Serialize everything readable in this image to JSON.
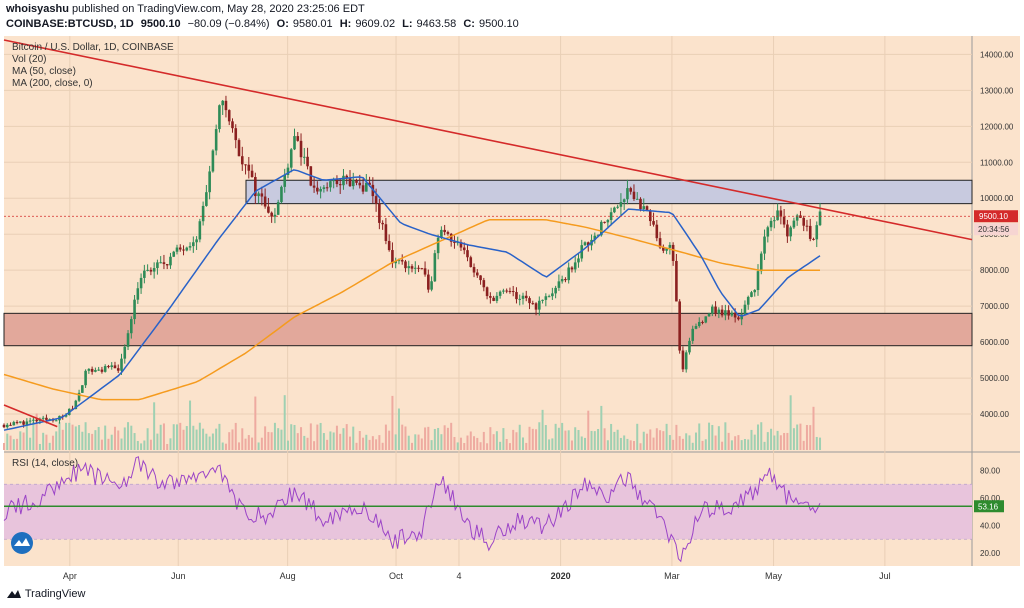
{
  "header": {
    "author": "whoisyashu",
    "published": "published on TradingView.com, May 28, 2020 23:25:06 EDT",
    "symbol": "COINBASE:BTCUSD, 1D",
    "last": "9500.10",
    "change": "−80.09 (−0.84%)",
    "open_label": "O:",
    "open": "9580.01",
    "high_label": "H:",
    "high": "9609.02",
    "low_label": "L:",
    "low": "9463.58",
    "close_label": "C:",
    "close": "9500.10"
  },
  "legend": {
    "title": "Bitcoin / U.S. Dollar, 1D, COINBASE",
    "vol": "Vol (20)",
    "ma50": "MA (50, close)",
    "ma200": "MA (200, close, 0)"
  },
  "price_tag": "9500.10",
  "countdown": "20:34:56",
  "rsi_label": "RSI (14, close)",
  "rsi_value": "53.16",
  "footer": {
    "brand": "TradingView"
  },
  "colors": {
    "background": "#fbe3cc",
    "up": "#2e8b57",
    "down": "#8b2020",
    "ma50": "#2962c8",
    "ma200": "#f59b1e",
    "trendline": "#d42a2a",
    "resistance_zone": "#c8cadf",
    "support_zone": "#e2a89b",
    "rsi": "#9b44c7",
    "rsi_band": "#e8c4dc",
    "rsi_mid": "#2e8b2e"
  },
  "chart_data": [
    {
      "type": "candlestick",
      "title": "Bitcoin / U.S. Dollar, 1D, COINBASE",
      "x_ticks": [
        "Apr",
        "Jun",
        "Aug",
        "Oct",
        "4",
        "2020",
        "Mar",
        "May",
        "Jul"
      ],
      "ylim": [
        3000,
        14400
      ],
      "y_ticks": [
        4000,
        5000,
        6000,
        7000,
        8000,
        9000,
        10000,
        11000,
        12000,
        13000,
        14000
      ],
      "y_tick_labels": [
        "4000.00",
        "5000.00",
        "6000.00",
        "7000.00",
        "8000.00",
        "9000.00",
        "10000.00",
        "11000.00",
        "12000.00",
        "13000.00",
        "14000.00"
      ],
      "zones": [
        {
          "name": "resistance",
          "low": 9850,
          "high": 10500
        },
        {
          "name": "support",
          "low": 5900,
          "high": 6800
        }
      ],
      "trendline": [
        [
          0,
          14400
        ],
        [
          1,
          8850
        ]
      ],
      "close_anchors": [
        [
          0,
          3700
        ],
        [
          0.06,
          3900
        ],
        [
          0.072,
          4200
        ],
        [
          0.085,
          5200
        ],
        [
          0.12,
          5300
        ],
        [
          0.14,
          7800
        ],
        [
          0.17,
          8300
        ],
        [
          0.2,
          9000
        ],
        [
          0.215,
          11000
        ],
        [
          0.225,
          12900
        ],
        [
          0.24,
          11500
        ],
        [
          0.26,
          10200
        ],
        [
          0.28,
          9500
        ],
        [
          0.3,
          11800
        ],
        [
          0.32,
          10200
        ],
        [
          0.35,
          10500
        ],
        [
          0.38,
          10200
        ],
        [
          0.4,
          8300
        ],
        [
          0.43,
          8000
        ],
        [
          0.44,
          7500
        ],
        [
          0.45,
          9300
        ],
        [
          0.48,
          8300
        ],
        [
          0.5,
          7200
        ],
        [
          0.52,
          7400
        ],
        [
          0.55,
          7000
        ],
        [
          0.575,
          7600
        ],
        [
          0.6,
          8700
        ],
        [
          0.62,
          9300
        ],
        [
          0.645,
          10300
        ],
        [
          0.665,
          9500
        ],
        [
          0.68,
          8600
        ],
        [
          0.69,
          8800
        ],
        [
          0.7,
          5000
        ],
        [
          0.71,
          6300
        ],
        [
          0.73,
          6900
        ],
        [
          0.76,
          6700
        ],
        [
          0.775,
          7500
        ],
        [
          0.785,
          8800
        ],
        [
          0.8,
          9800
        ],
        [
          0.81,
          9000
        ],
        [
          0.82,
          9600
        ],
        [
          0.835,
          8900
        ],
        [
          0.843,
          9500
        ]
      ],
      "ma50_anchors": [
        [
          0,
          3550
        ],
        [
          0.06,
          3900
        ],
        [
          0.12,
          5100
        ],
        [
          0.17,
          6900
        ],
        [
          0.22,
          8800
        ],
        [
          0.26,
          10200
        ],
        [
          0.3,
          10800
        ],
        [
          0.33,
          10500
        ],
        [
          0.37,
          10600
        ],
        [
          0.41,
          9300
        ],
        [
          0.44,
          9000
        ],
        [
          0.48,
          8700
        ],
        [
          0.52,
          8500
        ],
        [
          0.56,
          7800
        ],
        [
          0.6,
          8600
        ],
        [
          0.645,
          9700
        ],
        [
          0.69,
          9600
        ],
        [
          0.72,
          8400
        ],
        [
          0.74,
          7400
        ],
        [
          0.76,
          6700
        ],
        [
          0.78,
          6900
        ],
        [
          0.81,
          7800
        ],
        [
          0.843,
          8400
        ]
      ],
      "ma200_anchors": [
        [
          0,
          5100
        ],
        [
          0.05,
          4700
        ],
        [
          0.1,
          4400
        ],
        [
          0.14,
          4400
        ],
        [
          0.2,
          4900
        ],
        [
          0.25,
          5700
        ],
        [
          0.3,
          6700
        ],
        [
          0.35,
          7400
        ],
        [
          0.4,
          8200
        ],
        [
          0.45,
          8800
        ],
        [
          0.5,
          9400
        ],
        [
          0.56,
          9400
        ],
        [
          0.6,
          9200
        ],
        [
          0.645,
          8900
        ],
        [
          0.7,
          8500
        ],
        [
          0.74,
          8200
        ],
        [
          0.78,
          8000
        ],
        [
          0.843,
          8000
        ]
      ]
    },
    {
      "type": "line",
      "title": "RSI (14, close)",
      "ylim": [
        12,
        92
      ],
      "y_ticks": [
        20,
        40,
        60,
        80
      ],
      "y_tick_labels": [
        "20.00",
        "40.00",
        "60.00",
        "80.00"
      ],
      "band": [
        30,
        70
      ],
      "mid_line": 54,
      "anchors": [
        [
          0,
          50
        ],
        [
          0.04,
          60
        ],
        [
          0.06,
          75
        ],
        [
          0.08,
          80
        ],
        [
          0.12,
          70
        ],
        [
          0.14,
          85
        ],
        [
          0.16,
          70
        ],
        [
          0.2,
          75
        ],
        [
          0.22,
          85
        ],
        [
          0.24,
          55
        ],
        [
          0.27,
          45
        ],
        [
          0.3,
          65
        ],
        [
          0.33,
          45
        ],
        [
          0.37,
          55
        ],
        [
          0.4,
          28
        ],
        [
          0.43,
          35
        ],
        [
          0.45,
          75
        ],
        [
          0.48,
          40
        ],
        [
          0.5,
          28
        ],
        [
          0.53,
          45
        ],
        [
          0.56,
          40
        ],
        [
          0.6,
          70
        ],
        [
          0.62,
          60
        ],
        [
          0.645,
          75
        ],
        [
          0.665,
          55
        ],
        [
          0.68,
          45
        ],
        [
          0.69,
          28
        ],
        [
          0.7,
          18
        ],
        [
          0.72,
          50
        ],
        [
          0.75,
          55
        ],
        [
          0.77,
          60
        ],
        [
          0.79,
          80
        ],
        [
          0.8,
          70
        ],
        [
          0.81,
          60
        ],
        [
          0.83,
          50
        ],
        [
          0.843,
          55
        ]
      ]
    }
  ]
}
